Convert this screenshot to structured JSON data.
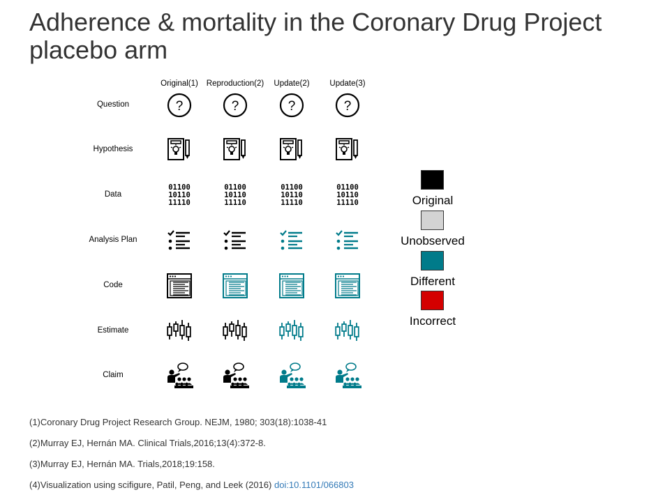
{
  "title": "Adherence & mortality in the Coronary Drug Project placebo arm",
  "columns": [
    "Original(1)",
    "Reproduction(2)",
    "Update(2)",
    "Update(3)"
  ],
  "rows": [
    {
      "label": "Question",
      "icon": "question-icon",
      "states": [
        "original",
        "original",
        "original",
        "original"
      ]
    },
    {
      "label": "Hypothesis",
      "icon": "hypothesis-icon",
      "states": [
        "original",
        "original",
        "original",
        "original"
      ]
    },
    {
      "label": "Data",
      "icon": "binary-data-icon",
      "states": [
        "original",
        "original",
        "original",
        "original"
      ]
    },
    {
      "label": "Analysis Plan",
      "icon": "checklist-icon",
      "states": [
        "original",
        "original",
        "different",
        "different"
      ]
    },
    {
      "label": "Code",
      "icon": "code-window-icon",
      "states": [
        "original",
        "different",
        "different",
        "different"
      ]
    },
    {
      "label": "Estimate",
      "icon": "boxplot-icon",
      "states": [
        "original",
        "original",
        "different",
        "different"
      ]
    },
    {
      "label": "Claim",
      "icon": "presenter-icon",
      "states": [
        "original",
        "original",
        "different",
        "different"
      ]
    }
  ],
  "legend": [
    {
      "label": "Original",
      "state": "original",
      "color": "#000000"
    },
    {
      "label": "Unobserved",
      "state": "unobserved",
      "color": "#d3d3d3"
    },
    {
      "label": "Different",
      "state": "different",
      "color": "#007b8a"
    },
    {
      "label": "Incorrect",
      "state": "incorrect",
      "color": "#d40000"
    }
  ],
  "references": [
    {
      "text": "(1)Coronary Drug Project Research Group. NEJM, 1980; 303(18):1038-41"
    },
    {
      "text": "(2)Murray EJ, Hernán MA. Clinical Trials,2016;13(4):372-8."
    },
    {
      "text": "(3)Murray EJ, Hernán MA. Trials,2018;19:158."
    },
    {
      "text": "(4)Visualization using scifigure, Patil, Peng, and Leek (2016) ",
      "link": "doi:10.1101/066803"
    }
  ]
}
